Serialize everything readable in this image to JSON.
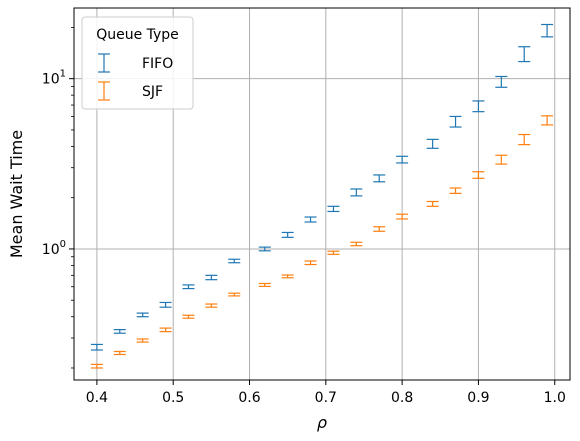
{
  "chart_data": {
    "type": "errorbar",
    "xlabel": "ρ",
    "ylabel": "Mean Wait Time",
    "yscale": "log",
    "xlim": [
      0.37,
      1.02
    ],
    "ylim": [
      0.17,
      26
    ],
    "grid": true,
    "x_ticks": [
      0.4,
      0.5,
      0.6,
      0.7,
      0.8,
      0.9,
      1.0
    ],
    "x_tick_labels": [
      "0.4",
      "0.5",
      "0.6",
      "0.7",
      "0.8",
      "0.9",
      "1.0"
    ],
    "y_major_ticks": [
      1,
      10
    ],
    "legend": {
      "title": "Queue Type",
      "placement": "top-left"
    },
    "series": [
      {
        "name": "FIFO",
        "color": "#1f77b4",
        "x": [
          0.4,
          0.43,
          0.46,
          0.49,
          0.52,
          0.55,
          0.58,
          0.62,
          0.65,
          0.68,
          0.71,
          0.74,
          0.77,
          0.8,
          0.84,
          0.87,
          0.9,
          0.93,
          0.96,
          0.99
        ],
        "y": [
          0.265,
          0.328,
          0.41,
          0.47,
          0.6,
          0.68,
          0.85,
          1.0,
          1.21,
          1.49,
          1.72,
          2.15,
          2.6,
          3.35,
          4.15,
          5.6,
          6.9,
          9.6,
          14.0,
          19.2
        ],
        "err_low": [
          0.255,
          0.32,
          0.4,
          0.455,
          0.585,
          0.66,
          0.83,
          0.975,
          1.17,
          1.44,
          1.66,
          2.05,
          2.48,
          3.2,
          3.9,
          5.2,
          6.4,
          8.9,
          12.6,
          17.6
        ],
        "err_high": [
          0.275,
          0.336,
          0.42,
          0.485,
          0.615,
          0.7,
          0.87,
          1.025,
          1.25,
          1.54,
          1.78,
          2.25,
          2.72,
          3.5,
          4.4,
          6.0,
          7.4,
          10.3,
          15.4,
          20.8
        ]
      },
      {
        "name": "SJF",
        "color": "#ff7f0e",
        "x": [
          0.4,
          0.43,
          0.46,
          0.49,
          0.52,
          0.55,
          0.58,
          0.62,
          0.65,
          0.68,
          0.71,
          0.74,
          0.77,
          0.8,
          0.84,
          0.87,
          0.9,
          0.93,
          0.96,
          0.99
        ],
        "y": [
          0.205,
          0.245,
          0.29,
          0.335,
          0.4,
          0.465,
          0.54,
          0.615,
          0.69,
          0.83,
          0.95,
          1.07,
          1.31,
          1.55,
          1.84,
          2.2,
          2.72,
          3.35,
          4.4,
          5.7
        ],
        "err_low": [
          0.2,
          0.24,
          0.284,
          0.327,
          0.392,
          0.455,
          0.53,
          0.603,
          0.677,
          0.81,
          0.93,
          1.045,
          1.27,
          1.5,
          1.78,
          2.12,
          2.6,
          3.15,
          4.1,
          5.35
        ],
        "err_high": [
          0.21,
          0.25,
          0.296,
          0.343,
          0.408,
          0.475,
          0.55,
          0.627,
          0.703,
          0.85,
          0.97,
          1.095,
          1.35,
          1.6,
          1.9,
          2.28,
          2.84,
          3.55,
          4.7,
          6.05
        ]
      }
    ]
  }
}
